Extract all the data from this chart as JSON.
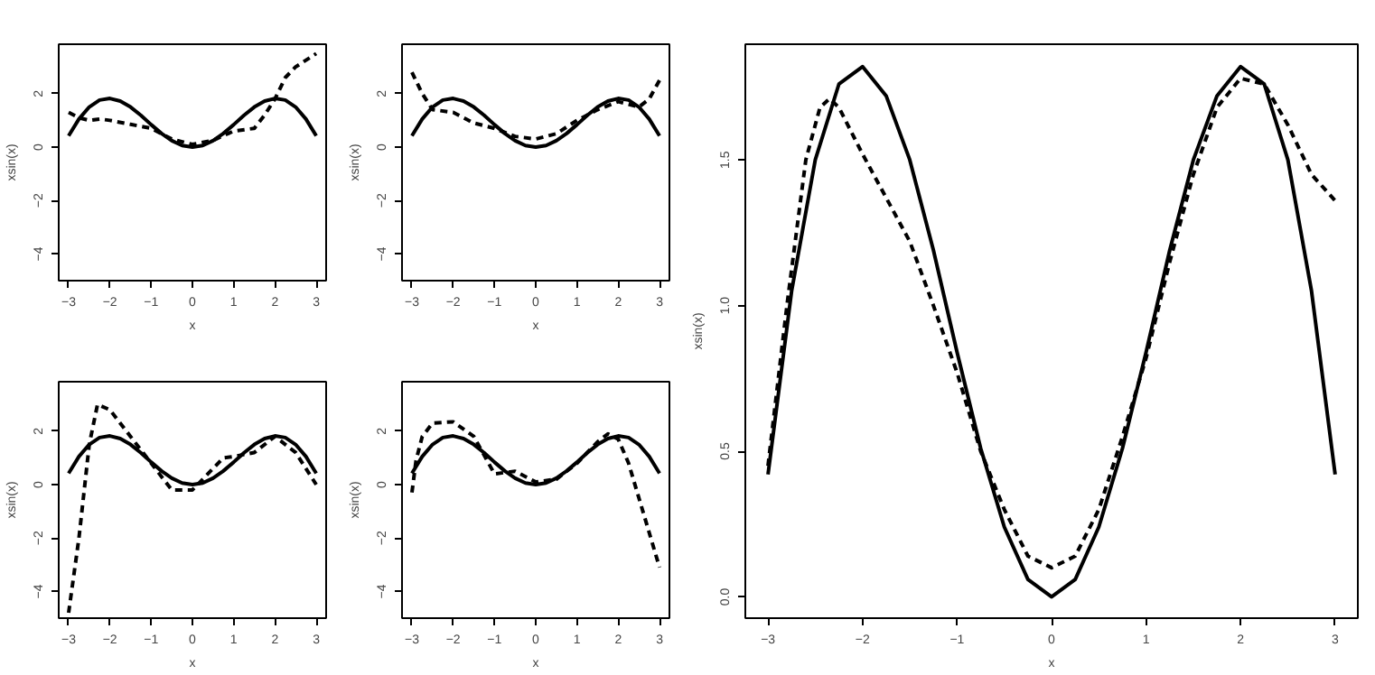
{
  "chart_data": [
    {
      "type": "line",
      "xlabel": "x",
      "ylabel": "xsin(x)",
      "xlim": [
        -3.24,
        3.24
      ],
      "ylim": [
        -5.0,
        3.85
      ],
      "xticks": [
        -3,
        -2,
        -1,
        0,
        1,
        2,
        3
      ],
      "yticks": [
        -4,
        -2,
        0,
        2
      ],
      "series": [
        {
          "color": "#000000",
          "line_style": "solid",
          "x": [
            -3,
            -2.75,
            -2.5,
            -2.25,
            -2,
            -1.75,
            -1.5,
            -1.25,
            -1,
            -0.75,
            -0.5,
            -0.25,
            0,
            0.25,
            0.5,
            0.75,
            1,
            1.25,
            1.5,
            1.75,
            2,
            2.25,
            2.5,
            2.75,
            3
          ],
          "values": [
            0.42,
            1.05,
            1.5,
            1.76,
            1.82,
            1.72,
            1.5,
            1.19,
            0.84,
            0.51,
            0.24,
            0.06,
            0,
            0.06,
            0.24,
            0.51,
            0.84,
            1.19,
            1.5,
            1.72,
            1.82,
            1.76,
            1.5,
            1.05,
            0.42
          ]
        },
        {
          "color": "#000000",
          "line_style": "dashed",
          "x": [
            -3,
            -2.75,
            -2.5,
            -2.25,
            -2,
            -1.5,
            -1,
            -0.5,
            0,
            0.5,
            1,
            1.5,
            1.75,
            2,
            2.25,
            2.5,
            3
          ],
          "values": [
            1.3,
            1.1,
            1.0,
            1.05,
            1.0,
            0.85,
            0.7,
            0.3,
            0.1,
            0.25,
            0.6,
            0.7,
            1.2,
            1.8,
            2.6,
            3.0,
            3.5
          ]
        }
      ]
    },
    {
      "type": "line",
      "xlabel": "x",
      "ylabel": "xsin(x)",
      "xlim": [
        -3.24,
        3.24
      ],
      "ylim": [
        -5.0,
        3.85
      ],
      "xticks": [
        -3,
        -2,
        -1,
        0,
        1,
        2,
        3
      ],
      "yticks": [
        -4,
        -2,
        0,
        2
      ],
      "series": [
        {
          "color": "#000000",
          "line_style": "solid",
          "x": [
            -3,
            -2.75,
            -2.5,
            -2.25,
            -2,
            -1.75,
            -1.5,
            -1.25,
            -1,
            -0.75,
            -0.5,
            -0.25,
            0,
            0.25,
            0.5,
            0.75,
            1,
            1.25,
            1.5,
            1.75,
            2,
            2.25,
            2.5,
            2.75,
            3
          ],
          "values": [
            0.42,
            1.05,
            1.5,
            1.76,
            1.82,
            1.72,
            1.5,
            1.19,
            0.84,
            0.51,
            0.24,
            0.06,
            0,
            0.06,
            0.24,
            0.51,
            0.84,
            1.19,
            1.5,
            1.72,
            1.82,
            1.76,
            1.5,
            1.05,
            0.42
          ]
        },
        {
          "color": "#000000",
          "line_style": "dashed",
          "x": [
            -3,
            -2.75,
            -2.5,
            -2,
            -1.5,
            -1,
            -0.5,
            0,
            0.5,
            1,
            1.5,
            2,
            2.5,
            2.75,
            3
          ],
          "values": [
            2.8,
            2.0,
            1.4,
            1.3,
            0.9,
            0.7,
            0.4,
            0.3,
            0.5,
            1.0,
            1.4,
            1.7,
            1.5,
            1.8,
            2.5
          ]
        }
      ]
    },
    {
      "type": "line",
      "xlabel": "x",
      "ylabel": "xsin(x)",
      "xlim": [
        -3.24,
        3.24
      ],
      "ylim": [
        -5.0,
        3.85
      ],
      "xticks": [
        -3,
        -2,
        -1,
        0,
        1,
        2,
        3
      ],
      "yticks": [
        -4,
        -2,
        0,
        2
      ],
      "series": [
        {
          "color": "#000000",
          "line_style": "solid",
          "x": [
            -3,
            -2.75,
            -2.5,
            -2.25,
            -2,
            -1.75,
            -1.5,
            -1.25,
            -1,
            -0.75,
            -0.5,
            -0.25,
            0,
            0.25,
            0.5,
            0.75,
            1,
            1.25,
            1.5,
            1.75,
            2,
            2.25,
            2.5,
            2.75,
            3
          ],
          "values": [
            0.42,
            1.05,
            1.5,
            1.76,
            1.82,
            1.72,
            1.5,
            1.19,
            0.84,
            0.51,
            0.24,
            0.06,
            0,
            0.06,
            0.24,
            0.51,
            0.84,
            1.19,
            1.5,
            1.72,
            1.82,
            1.76,
            1.5,
            1.05,
            0.42
          ]
        },
        {
          "color": "#000000",
          "line_style": "dashed",
          "x": [
            -3,
            -2.75,
            -2.5,
            -2.3,
            -2,
            -1.5,
            -1,
            -0.5,
            -0.25,
            0,
            0.25,
            0.5,
            0.75,
            1,
            1.5,
            2,
            2.5,
            3
          ],
          "values": [
            -4.8,
            -2.0,
            1.5,
            3.0,
            2.8,
            1.8,
            0.8,
            -0.2,
            -0.2,
            -0.2,
            0.2,
            0.6,
            1.0,
            1.05,
            1.2,
            1.8,
            1.2,
            0
          ]
        }
      ]
    },
    {
      "type": "line",
      "xlabel": "x",
      "ylabel": "xsin(x)",
      "xlim": [
        -3.24,
        3.24
      ],
      "ylim": [
        -5.0,
        3.85
      ],
      "xticks": [
        -3,
        -2,
        -1,
        0,
        1,
        2,
        3
      ],
      "yticks": [
        -4,
        -2,
        0,
        2
      ],
      "series": [
        {
          "color": "#000000",
          "line_style": "solid",
          "x": [
            -3,
            -2.75,
            -2.5,
            -2.25,
            -2,
            -1.75,
            -1.5,
            -1.25,
            -1,
            -0.75,
            -0.5,
            -0.25,
            0,
            0.25,
            0.5,
            0.75,
            1,
            1.25,
            1.5,
            1.75,
            2,
            2.25,
            2.5,
            2.75,
            3
          ],
          "values": [
            0.42,
            1.05,
            1.5,
            1.76,
            1.82,
            1.72,
            1.5,
            1.19,
            0.84,
            0.51,
            0.24,
            0.06,
            0,
            0.06,
            0.24,
            0.51,
            0.84,
            1.19,
            1.5,
            1.72,
            1.82,
            1.76,
            1.5,
            1.05,
            0.42
          ]
        },
        {
          "color": "#000000",
          "line_style": "dashed",
          "x": [
            -3,
            -2.9,
            -2.75,
            -2.5,
            -2,
            -1.5,
            -1,
            -0.5,
            0,
            0.5,
            1,
            1.5,
            1.75,
            2,
            2.25,
            2.5,
            2.75,
            3
          ],
          "values": [
            -0.3,
            0.9,
            1.8,
            2.3,
            2.35,
            1.8,
            0.4,
            0.5,
            0.1,
            0.2,
            0.8,
            1.6,
            1.9,
            1.7,
            0.8,
            -0.5,
            -1.8,
            -3.1
          ]
        }
      ]
    },
    {
      "type": "line",
      "xlabel": "x",
      "ylabel": "xsin(x)",
      "xlim": [
        -3.24,
        3.24
      ],
      "ylim": [
        -0.073,
        1.897
      ],
      "xticks": [
        -3,
        -2,
        -1,
        0,
        1,
        2,
        3
      ],
      "yticks": [
        {
          "value": 0,
          "label": "0.0"
        },
        0.5,
        {
          "value": 1,
          "label": "1.0"
        },
        1.5
      ],
      "series": [
        {
          "color": "#000000",
          "line_style": "solid",
          "x": [
            -3,
            -2.75,
            -2.5,
            -2.25,
            -2,
            -1.75,
            -1.5,
            -1.25,
            -1,
            -0.75,
            -0.5,
            -0.25,
            0,
            0.25,
            0.5,
            0.75,
            1,
            1.25,
            1.5,
            1.75,
            2,
            2.25,
            2.5,
            2.75,
            3
          ],
          "values": [
            0.42,
            1.05,
            1.5,
            1.76,
            1.82,
            1.72,
            1.5,
            1.19,
            0.84,
            0.51,
            0.24,
            0.06,
            0,
            0.06,
            0.24,
            0.51,
            0.84,
            1.19,
            1.5,
            1.72,
            1.82,
            1.76,
            1.5,
            1.05,
            0.42
          ]
        },
        {
          "color": "#000000",
          "line_style": "dashed",
          "x": [
            -3,
            -2.8,
            -2.6,
            -2.45,
            -2.35,
            -2.25,
            -2,
            -1.5,
            -1.25,
            -1,
            -0.75,
            -0.5,
            -0.25,
            0,
            0.25,
            0.5,
            0.75,
            1,
            1.25,
            1.5,
            1.75,
            2,
            2.25,
            2.5,
            2.75,
            3
          ],
          "values": [
            0.45,
            1.0,
            1.5,
            1.68,
            1.71,
            1.68,
            1.52,
            1.22,
            1.0,
            0.77,
            0.5,
            0.3,
            0.14,
            0.1,
            0.14,
            0.3,
            0.55,
            0.82,
            1.15,
            1.45,
            1.68,
            1.78,
            1.76,
            1.62,
            1.45,
            1.36
          ]
        }
      ]
    }
  ]
}
